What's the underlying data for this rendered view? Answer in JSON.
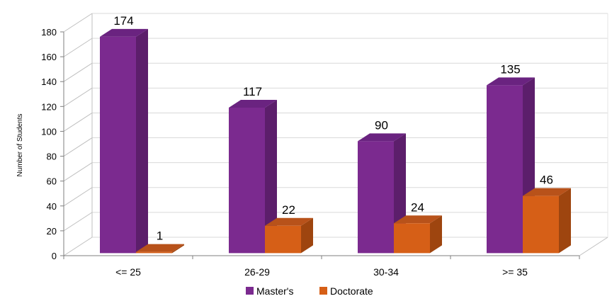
{
  "chart_data": {
    "type": "bar",
    "style": "3d-clustered-column",
    "categories": [
      "<= 25",
      "26-29",
      "30-34",
      ">= 35"
    ],
    "series": [
      {
        "name": "Master's",
        "values": [
          174,
          117,
          90,
          135
        ],
        "color": "#7B2A8F",
        "side_color": "#5C1E6B",
        "top_color": "#6A2380"
      },
      {
        "name": "Doctorate",
        "values": [
          1,
          22,
          24,
          46
        ],
        "color": "#D65F17",
        "side_color": "#9E450F",
        "top_color": "#B8521A"
      }
    ],
    "data_labels": {
      "masters": [
        "174",
        "117",
        "90",
        "135"
      ],
      "doctorate": [
        "1",
        "22",
        "24",
        "46"
      ]
    },
    "ylabel": "Number of Students",
    "xlabel": "",
    "title": "",
    "ylim": [
      0,
      180
    ],
    "yticks": [
      "0",
      "20",
      "40",
      "60",
      "80",
      "100",
      "120",
      "140",
      "160",
      "180"
    ],
    "grid": true,
    "legend": "bottom"
  }
}
